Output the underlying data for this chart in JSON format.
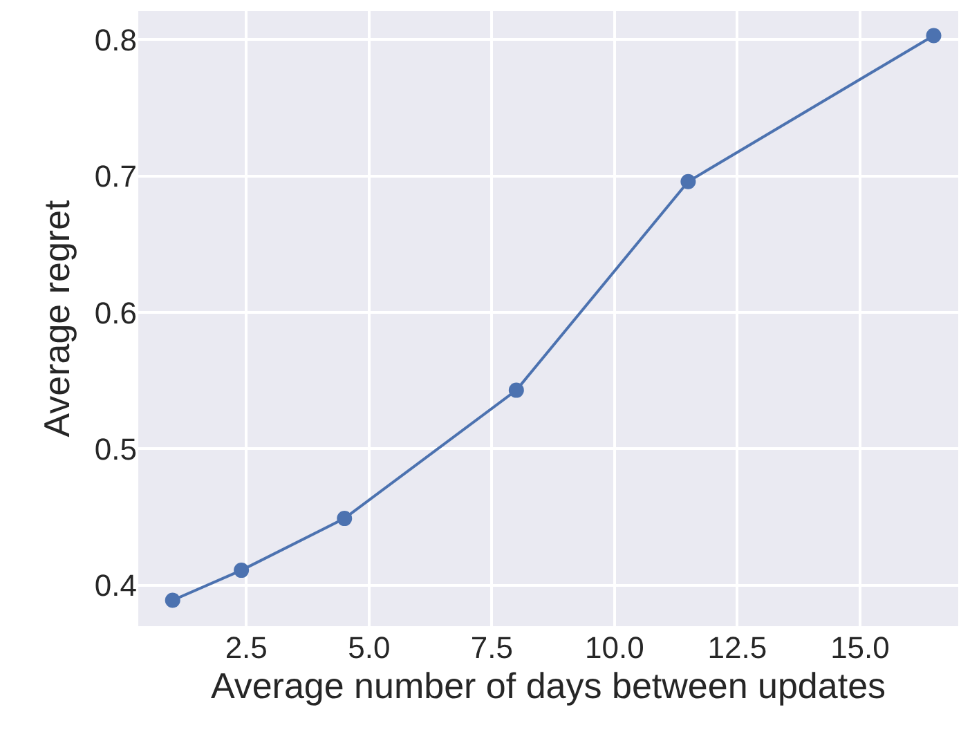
{
  "chart_data": {
    "type": "line",
    "xlabel": "Average number of days between updates",
    "ylabel": "Average regret",
    "x": [
      1,
      2.4,
      4.5,
      8,
      11.5,
      16.5
    ],
    "series": [
      {
        "color": "#4c72b0",
        "values": [
          0.389,
          0.411,
          0.449,
          0.543,
          0.696,
          0.803
        ]
      }
    ],
    "xlim": [
      0.3,
      17.0
    ],
    "ylim": [
      0.37,
      0.821
    ],
    "xticks": [
      2.5,
      {
        "value": 5,
        "label": "5.0"
      },
      7.5,
      {
        "value": 10,
        "label": "10.0"
      },
      12.5,
      {
        "value": 15,
        "label": "15.0"
      }
    ],
    "yticks": [
      0.4,
      0.5,
      0.6,
      0.7,
      0.8
    ],
    "grid": true,
    "marker": "circle",
    "line_style": "solid"
  }
}
